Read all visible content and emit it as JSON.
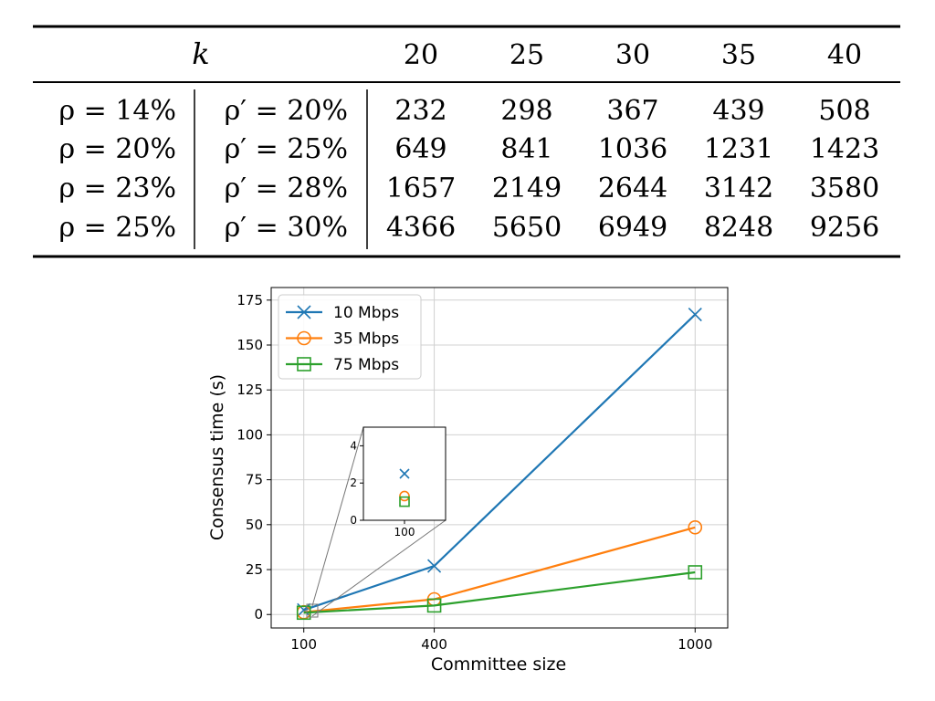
{
  "table": {
    "k_label": "k",
    "k_values": [
      "20",
      "25",
      "30",
      "35",
      "40"
    ],
    "rows": [
      {
        "rho": "ρ = 14%",
        "rho_prime": "ρ′ = 20%",
        "cells": [
          "232",
          "298",
          "367",
          "439",
          "508"
        ]
      },
      {
        "rho": "ρ = 20%",
        "rho_prime": "ρ′ = 25%",
        "cells": [
          "649",
          "841",
          "1036",
          "1231",
          "1423"
        ]
      },
      {
        "rho": "ρ = 23%",
        "rho_prime": "ρ′ = 28%",
        "cells": [
          "1657",
          "2149",
          "2644",
          "3142",
          "3580"
        ]
      },
      {
        "rho": "ρ = 25%",
        "rho_prime": "ρ′ = 30%",
        "cells": [
          "4366",
          "5650",
          "6949",
          "8248",
          "9256"
        ]
      }
    ]
  },
  "chart_data": {
    "type": "line",
    "title": "",
    "xlabel": "Committee size",
    "ylabel": "Consensus time (s)",
    "x": [
      100,
      400,
      1000
    ],
    "xticks": [
      "100",
      "400",
      "1000"
    ],
    "yticks": [
      "0",
      "25",
      "50",
      "75",
      "100",
      "125",
      "150",
      "175"
    ],
    "ylim": [
      0,
      175
    ],
    "grid": true,
    "legend_position": "top-left",
    "series": [
      {
        "name": "10 Mbps",
        "values": [
          2.5,
          27,
          167
        ],
        "color": "#1f77b4",
        "marker": "x"
      },
      {
        "name": "35 Mbps",
        "values": [
          1.3,
          8.5,
          48.5
        ],
        "color": "#ff7f0e",
        "marker": "o"
      },
      {
        "name": "75 Mbps",
        "values": [
          1.0,
          5,
          23.5
        ],
        "color": "#2ca02c",
        "marker": "s"
      }
    ],
    "inset": {
      "x": [
        100
      ],
      "xticks": [
        "100"
      ],
      "yticks": [
        "0",
        "2",
        "4"
      ],
      "ylim": [
        0,
        5
      ],
      "values": [
        2.5,
        1.3,
        1.0
      ]
    }
  }
}
